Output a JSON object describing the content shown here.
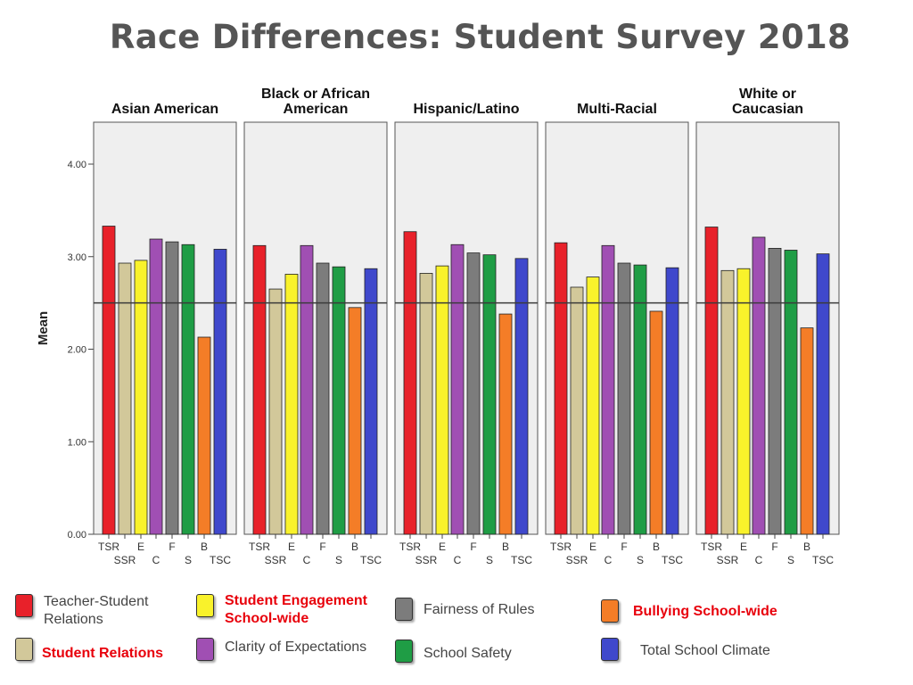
{
  "slide": {
    "title": "Race Differences: Student Survey 2018"
  },
  "colors": {
    "TSR": "#e8212a",
    "SSR": "#d2c89a",
    "E": "#f9f22b",
    "C": "#a04fb3",
    "F": "#7c7c7c",
    "S": "#1f9d45",
    "B": "#f47d27",
    "TSC": "#3f48cc",
    "panel_bg": "#efefef",
    "reference_line": "#3b3b3b"
  },
  "chart_data": {
    "type": "bar",
    "ylabel": "Mean",
    "ylim": [
      0,
      4.5
    ],
    "y_ticks": [
      "0.00",
      "1.00",
      "2.00",
      "3.00",
      "4.00"
    ],
    "y_tick_values": [
      0,
      1,
      2,
      3,
      4
    ],
    "reference_line": 2.5,
    "categories": [
      "TSR",
      "SSR",
      "E",
      "C",
      "F",
      "S",
      "B",
      "TSC"
    ],
    "panels": [
      {
        "title": [
          "Asian American"
        ],
        "values": [
          3.33,
          2.93,
          2.96,
          3.19,
          3.16,
          3.13,
          2.13,
          3.08
        ]
      },
      {
        "title": [
          "Black or African",
          "American"
        ],
        "values": [
          3.12,
          2.65,
          2.81,
          3.12,
          2.93,
          2.89,
          2.45,
          2.87
        ]
      },
      {
        "title": [
          "Hispanic/Latino"
        ],
        "values": [
          3.27,
          2.82,
          2.9,
          3.13,
          3.04,
          3.02,
          2.38,
          2.98
        ]
      },
      {
        "title": [
          "Multi-Racial"
        ],
        "values": [
          3.15,
          2.67,
          2.78,
          3.12,
          2.93,
          2.91,
          2.41,
          2.88
        ]
      },
      {
        "title": [
          "White or",
          "Caucasian"
        ],
        "values": [
          3.32,
          2.85,
          2.87,
          3.21,
          3.09,
          3.07,
          2.23,
          3.03
        ]
      }
    ]
  },
  "legend": [
    {
      "key": "TSR",
      "label": "Teacher-Student Relations",
      "highlight": false
    },
    {
      "key": "E",
      "label": "Student Engagement School-wide",
      "highlight": true
    },
    {
      "key": "F",
      "label": "Fairness of Rules",
      "highlight": false
    },
    {
      "key": "B",
      "label": "Bullying School-wide",
      "highlight": true
    },
    {
      "key": "SSR",
      "label": "Student Relations",
      "highlight": true
    },
    {
      "key": "C",
      "label": "Clarity of Expectations",
      "highlight": false
    },
    {
      "key": "S",
      "label": "School Safety",
      "highlight": false
    },
    {
      "key": "TSC",
      "label": "Total School Climate",
      "highlight": false
    }
  ]
}
